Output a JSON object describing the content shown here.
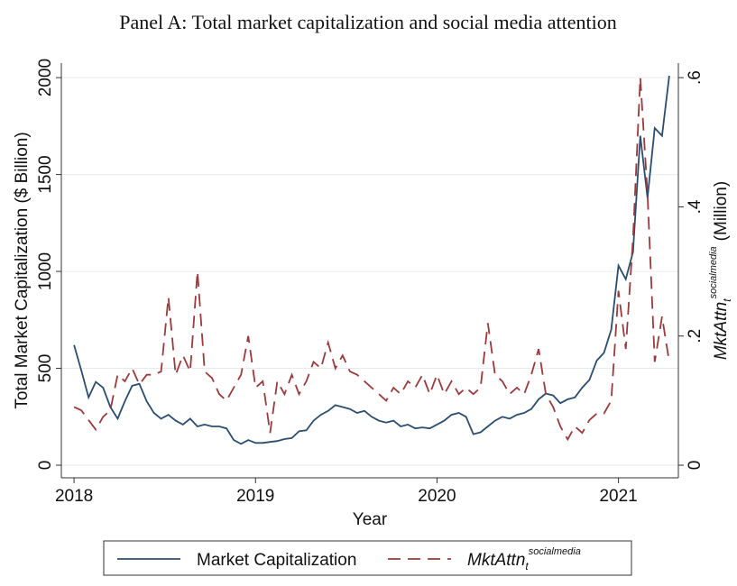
{
  "chart_data": {
    "type": "line",
    "title": "Panel A:  Total market capitalization and social media attention",
    "xlabel": "Year",
    "ylabel": "Total Market Capitalization ($ Billion)",
    "y2label": {
      "main": "MktAttn",
      "sub": "t",
      "sup": "socialmedia",
      "unit": "(Million)"
    },
    "x": [
      2018.0,
      2018.04,
      2018.08,
      2018.12,
      2018.16,
      2018.2,
      2018.24,
      2018.28,
      2018.32,
      2018.36,
      2018.4,
      2018.44,
      2018.48,
      2018.52,
      2018.56,
      2018.6,
      2018.64,
      2018.68,
      2018.72,
      2018.76,
      2018.8,
      2018.84,
      2018.88,
      2018.92,
      2018.96,
      2019.0,
      2019.04,
      2019.08,
      2019.12,
      2019.16,
      2019.2,
      2019.24,
      2019.28,
      2019.32,
      2019.36,
      2019.4,
      2019.44,
      2019.48,
      2019.52,
      2019.56,
      2019.6,
      2019.64,
      2019.68,
      2019.72,
      2019.76,
      2019.8,
      2019.84,
      2019.88,
      2019.92,
      2019.96,
      2020.0,
      2020.04,
      2020.08,
      2020.12,
      2020.16,
      2020.2,
      2020.24,
      2020.28,
      2020.32,
      2020.36,
      2020.4,
      2020.44,
      2020.48,
      2020.52,
      2020.56,
      2020.6,
      2020.64,
      2020.68,
      2020.72,
      2020.76,
      2020.8,
      2020.84,
      2020.88,
      2020.92,
      2020.96,
      2021.0,
      2021.04,
      2021.08,
      2021.12,
      2021.16,
      2021.2,
      2021.24,
      2021.28
    ],
    "series": [
      {
        "name": "Market Capitalization",
        "color": "#2b4d6e",
        "dash": "none",
        "values": [
          620,
          490,
          350,
          430,
          400,
          300,
          240,
          330,
          410,
          420,
          330,
          270,
          240,
          260,
          230,
          210,
          240,
          200,
          210,
          200,
          200,
          190,
          130,
          110,
          130,
          115,
          115,
          120,
          125,
          135,
          140,
          175,
          180,
          230,
          260,
          280,
          310,
          300,
          290,
          270,
          280,
          250,
          230,
          220,
          230,
          200,
          210,
          190,
          195,
          190,
          210,
          230,
          260,
          270,
          250,
          160,
          170,
          200,
          230,
          250,
          240,
          260,
          270,
          290,
          340,
          370,
          360,
          320,
          340,
          350,
          400,
          440,
          540,
          580,
          700,
          1030,
          960,
          1100,
          1700,
          1380,
          1740,
          1700,
          2010
        ]
      },
      {
        "name": "MktAttn",
        "name_sub": "t",
        "name_sup": "socialmedia",
        "color": "#9b3a3d",
        "dash": "14 8",
        "axis": "y2",
        "values": [
          0.09,
          0.085,
          0.07,
          0.055,
          0.075,
          0.085,
          0.14,
          0.13,
          0.15,
          0.125,
          0.14,
          0.14,
          0.145,
          0.26,
          0.14,
          0.17,
          0.145,
          0.3,
          0.145,
          0.135,
          0.11,
          0.1,
          0.12,
          0.14,
          0.2,
          0.12,
          0.13,
          0.05,
          0.13,
          0.11,
          0.14,
          0.11,
          0.13,
          0.16,
          0.15,
          0.19,
          0.15,
          0.17,
          0.145,
          0.14,
          0.13,
          0.12,
          0.11,
          0.1,
          0.12,
          0.11,
          0.13,
          0.12,
          0.14,
          0.11,
          0.14,
          0.11,
          0.13,
          0.11,
          0.12,
          0.11,
          0.12,
          0.22,
          0.14,
          0.13,
          0.11,
          0.12,
          0.11,
          0.14,
          0.18,
          0.11,
          0.09,
          0.06,
          0.04,
          0.06,
          0.05,
          0.07,
          0.08,
          0.08,
          0.1,
          0.27,
          0.18,
          0.35,
          0.6,
          0.42,
          0.16,
          0.23,
          0.16
        ]
      }
    ],
    "xlim": [
      2017.93,
      2021.33
    ],
    "xticks": [
      2018,
      2019,
      2020,
      2021
    ],
    "ylim": [
      -65,
      2075
    ],
    "yticks": [
      0,
      500,
      1000,
      1500,
      2000
    ],
    "y2lim": [
      -0.0195,
      0.6225
    ],
    "y2ticks": [
      0,
      {
        "value": 0.2,
        "label": ".2"
      },
      {
        "value": 0.4,
        "label": ".4"
      },
      {
        "value": 0.6,
        "label": ".6"
      }
    ],
    "grid": true
  }
}
